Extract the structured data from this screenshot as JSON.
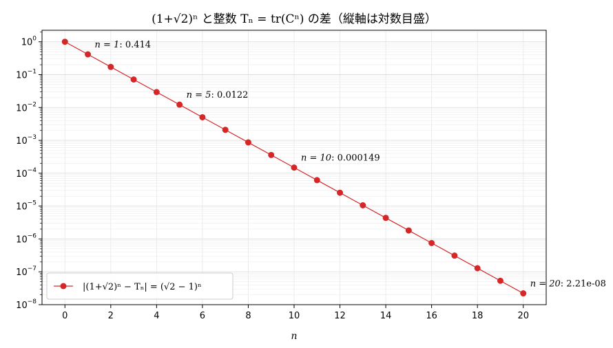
{
  "chart_data": {
    "type": "line",
    "title": "(1+√2)ⁿ と整数 Tₙ = tr(Cⁿ) の差（縦軸は対数目盛）",
    "xlabel": "n",
    "ylabel": "",
    "xlim": [
      -1,
      21
    ],
    "ylim_log10": [
      -8,
      0.35
    ],
    "yscale": "log",
    "grid": true,
    "legend_position": "lower-left",
    "line_color": "#d62728",
    "x_ticks": [
      0,
      2,
      4,
      6,
      8,
      10,
      12,
      14,
      16,
      18,
      20
    ],
    "x_tick_labels": [
      "0",
      "2",
      "4",
      "6",
      "8",
      "10",
      "12",
      "14",
      "16",
      "18",
      "20"
    ],
    "y_tick_exponents": [
      0,
      -1,
      -2,
      -3,
      -4,
      -5,
      -6,
      -7,
      -8
    ],
    "y_tick_base": "10",
    "series": [
      {
        "name": "|(1+√2)ⁿ − Tₙ| = (√2 − 1)ⁿ",
        "x": [
          0,
          1,
          2,
          3,
          4,
          5,
          6,
          7,
          8,
          9,
          10,
          11,
          12,
          13,
          14,
          15,
          16,
          17,
          18,
          19,
          20
        ],
        "values": [
          1.0,
          0.414214,
          0.171573,
          0.0710678,
          0.0294373,
          0.0121933,
          0.00505063,
          0.00209204,
          0.000866552,
          0.000358939,
          0.000148677,
          6.15846e-05,
          2.55089e-05,
          1.05663e-05,
          4.37676e-06,
          1.8129e-06,
          7.50945e-07,
          3.11049e-07,
          1.28845e-07,
          5.33589e-08,
          2.21e-08
        ]
      }
    ],
    "annotations": [
      {
        "n": 1,
        "label": "n = 1",
        "value_text": ": 0.414"
      },
      {
        "n": 5,
        "label": "n = 5",
        "value_text": ": 0.0122"
      },
      {
        "n": 10,
        "label": "n = 10",
        "value_text": ": 0.000149"
      },
      {
        "n": 20,
        "label": "n = 20",
        "value_text": ": 2.21e-08"
      }
    ]
  }
}
